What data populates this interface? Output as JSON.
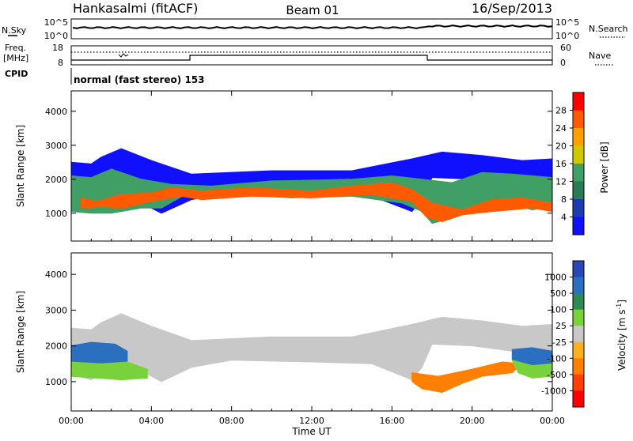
{
  "header": {
    "station": "Hankasalmi (fitACF)",
    "beam": "Beam 01",
    "date": "16/Sep/2013"
  },
  "status_panels": {
    "nsky_label": "N.Sky",
    "nsky_ticks": [
      "10^5",
      "10^0"
    ],
    "nsearch_label": "N.Search",
    "nsearch_ticks": [
      "10^5",
      "10^0"
    ],
    "freq_label": "Freq.",
    "freq_unit": "[MHz]",
    "freq_ticks": [
      "18",
      "8"
    ],
    "nave_label": "Nave",
    "nave_ticks": [
      "60",
      "0"
    ],
    "cpid_label": "CPID",
    "cpid_text": "normal (fast stereo) 153"
  },
  "power_colorbar": {
    "title": "Power [dB]",
    "tick_labels": [
      "28",
      "24",
      "20",
      "16",
      "12",
      "8",
      "4"
    ],
    "colors": [
      "#ff0000",
      "#ff5a00",
      "#ffa000",
      "#d0c800",
      "#3f9f64",
      "#2a7a55",
      "#1c3cb0",
      "#1010ff"
    ]
  },
  "velocity_colorbar": {
    "title": "Velocity [m s",
    "title_sup": "-1",
    "title_end": "]",
    "tick_labels": [
      "1000",
      "500",
      "100",
      "25",
      "-25",
      "-100",
      "-500",
      "-1000"
    ],
    "colors": [
      "#2a46b8",
      "#2a6fc0",
      "#2e8a55",
      "#78d23c",
      "#c8c8c8",
      "#ffb020",
      "#ff8000",
      "#ff4000",
      "#ff0000"
    ]
  },
  "chart_data": [
    {
      "type": "heatmap",
      "title": "Power",
      "xlabel": "Time UT",
      "ylabel": "Slant Range [km]",
      "x_ticks": [
        "00:00",
        "04:00",
        "08:00",
        "12:00",
        "16:00",
        "20:00",
        "00:00"
      ],
      "y_ticks": [
        1000,
        2000,
        3000,
        4000
      ],
      "xlim": [
        0,
        24
      ],
      "ylim": [
        180,
        4600
      ],
      "x_unit": "hours UT",
      "y_unit": "km",
      "layers": [
        {
          "name": "upper",
          "value": 4,
          "points": [
            [
              0,
              2500
            ],
            [
              1,
              2450
            ],
            [
              1.5,
              2650
            ],
            [
              2.5,
              2900
            ],
            [
              4,
              2550
            ],
            [
              6,
              2150
            ],
            [
              10,
              2250
            ],
            [
              14,
              2250
            ],
            [
              17,
              2600
            ],
            [
              18.5,
              2800
            ],
            [
              20.5,
              2700
            ],
            [
              22.5,
              2550
            ],
            [
              24,
              2600
            ],
            [
              24,
              1500
            ],
            [
              23,
              1500
            ],
            [
              22,
              1850
            ],
            [
              20,
              2000
            ],
            [
              18,
              2050
            ],
            [
              17.5,
              1400
            ],
            [
              17,
              1050
            ],
            [
              15,
              1500
            ],
            [
              12,
              1550
            ],
            [
              8,
              1600
            ],
            [
              6,
              1400
            ],
            [
              4.5,
              1000
            ],
            [
              3.5,
              1300
            ],
            [
              1.7,
              1300
            ],
            [
              1,
              1050
            ],
            [
              0,
              1200
            ]
          ]
        },
        {
          "name": "mid",
          "value": 14,
          "points": [
            [
              0,
              2100
            ],
            [
              1,
              2050
            ],
            [
              2,
              2300
            ],
            [
              3.5,
              2000
            ],
            [
              5,
              1850
            ],
            [
              7,
              1800
            ],
            [
              10,
              1950
            ],
            [
              14,
              2000
            ],
            [
              16,
              2100
            ],
            [
              17.5,
              2000
            ],
            [
              19,
              1900
            ],
            [
              20.5,
              2200
            ],
            [
              22,
              2150
            ],
            [
              24,
              2050
            ],
            [
              24,
              1200
            ],
            [
              23,
              1100
            ],
            [
              22,
              1250
            ],
            [
              20.5,
              1150
            ],
            [
              19,
              850
            ],
            [
              18,
              700
            ],
            [
              17.5,
              1050
            ],
            [
              16.5,
              1300
            ],
            [
              14,
              1500
            ],
            [
              11,
              1450
            ],
            [
              8,
              1550
            ],
            [
              6,
              1650
            ],
            [
              4.5,
              1150
            ],
            [
              3.5,
              1150
            ],
            [
              2,
              1000
            ],
            [
              1,
              1000
            ],
            [
              0,
              1050
            ]
          ]
        },
        {
          "name": "core",
          "value": 26,
          "points": [
            [
              0.5,
              1450
            ],
            [
              1.3,
              1350
            ],
            [
              2.5,
              1550
            ],
            [
              4,
              1600
            ],
            [
              5,
              1750
            ],
            [
              6.5,
              1650
            ],
            [
              9,
              1750
            ],
            [
              12,
              1650
            ],
            [
              14,
              1800
            ],
            [
              16,
              1900
            ],
            [
              17,
              1700
            ],
            [
              18,
              1300
            ],
            [
              19.5,
              1100
            ],
            [
              21,
              1400
            ],
            [
              22.5,
              1450
            ],
            [
              24,
              1300
            ],
            [
              24,
              1050
            ],
            [
              23,
              1150
            ],
            [
              21,
              1050
            ],
            [
              19.5,
              950
            ],
            [
              18.5,
              750
            ],
            [
              17.7,
              900
            ],
            [
              17,
              1350
            ],
            [
              15,
              1550
            ],
            [
              12,
              1450
            ],
            [
              9,
              1500
            ],
            [
              6.5,
              1400
            ],
            [
              5.5,
              1500
            ],
            [
              4,
              1350
            ],
            [
              2.6,
              1150
            ],
            [
              1.5,
              1200
            ],
            [
              0.5,
              1150
            ]
          ]
        }
      ],
      "series": [
        {
          "name": "Power [dB]",
          "min": 0,
          "max": 32
        }
      ]
    },
    {
      "type": "heatmap",
      "title": "Velocity",
      "xlabel": "Time UT",
      "ylabel": "Slant Range [km]",
      "x_ticks": [
        "00:00",
        "04:00",
        "08:00",
        "12:00",
        "16:00",
        "20:00",
        "00:00"
      ],
      "y_ticks": [
        1000,
        2000,
        3000,
        4000
      ],
      "xlim": [
        0,
        24
      ],
      "ylim": [
        180,
        4600
      ],
      "x_unit": "hours UT",
      "y_unit": "km",
      "layers": [
        {
          "name": "bulk",
          "value": 0,
          "points": [
            [
              0,
              2500
            ],
            [
              1,
              2450
            ],
            [
              1.5,
              2650
            ],
            [
              2.5,
              2900
            ],
            [
              4,
              2550
            ],
            [
              6,
              2150
            ],
            [
              10,
              2250
            ],
            [
              14,
              2250
            ],
            [
              17,
              2600
            ],
            [
              18.5,
              2800
            ],
            [
              20.5,
              2700
            ],
            [
              22.5,
              2550
            ],
            [
              24,
              2600
            ],
            [
              24,
              1500
            ],
            [
              23,
              1500
            ],
            [
              22,
              1850
            ],
            [
              20,
              2000
            ],
            [
              18,
              2050
            ],
            [
              17.5,
              1400
            ],
            [
              17,
              1050
            ],
            [
              15,
              1500
            ],
            [
              12,
              1550
            ],
            [
              8,
              1600
            ],
            [
              6,
              1400
            ],
            [
              4.5,
              1000
            ],
            [
              3.5,
              1300
            ],
            [
              1.7,
              1300
            ],
            [
              1,
              1050
            ],
            [
              0,
              1200
            ]
          ]
        },
        {
          "name": "west-blue",
          "value": 500,
          "points": [
            [
              0,
              2000
            ],
            [
              1,
              2100
            ],
            [
              2.2,
              2050
            ],
            [
              2.8,
              1850
            ],
            [
              2.8,
              1550
            ],
            [
              1.5,
              1500
            ],
            [
              0,
              1550
            ]
          ]
        },
        {
          "name": "west-green",
          "value": 80,
          "points": [
            [
              0,
              1550
            ],
            [
              1.5,
              1500
            ],
            [
              2.8,
              1550
            ],
            [
              3.8,
              1350
            ],
            [
              3.8,
              1100
            ],
            [
              2.5,
              1050
            ],
            [
              0,
              1150
            ]
          ]
        },
        {
          "name": "east-orange",
          "value": -300,
          "points": [
            [
              17,
              1250
            ],
            [
              18.3,
              1150
            ],
            [
              20,
              1350
            ],
            [
              21.5,
              1550
            ],
            [
              22.5,
              1500
            ],
            [
              22,
              1250
            ],
            [
              20.5,
              1150
            ],
            [
              19.5,
              950
            ],
            [
              18.5,
              700
            ],
            [
              17.5,
              800
            ],
            [
              17,
              1000
            ]
          ]
        },
        {
          "name": "east-blue",
          "value": 500,
          "points": [
            [
              22,
              1900
            ],
            [
              23,
              1950
            ],
            [
              24,
              1850
            ],
            [
              24,
              1500
            ],
            [
              23,
              1450
            ],
            [
              22,
              1600
            ]
          ]
        },
        {
          "name": "east-green",
          "value": 80,
          "points": [
            [
              22,
              1600
            ],
            [
              23,
              1450
            ],
            [
              24,
              1500
            ],
            [
              24,
              1150
            ],
            [
              23,
              1100
            ],
            [
              22.3,
              1250
            ]
          ]
        }
      ],
      "series": [
        {
          "name": "Velocity [m s^-1]",
          "min": -1000,
          "max": 1000
        }
      ]
    }
  ]
}
